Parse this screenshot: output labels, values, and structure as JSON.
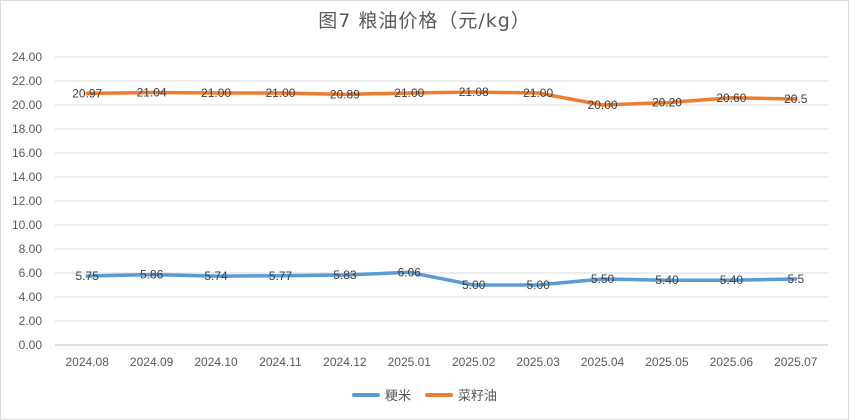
{
  "chart_data": {
    "type": "line",
    "title": "图7  粮油价格（元/kg）",
    "categories": [
      "2024.08",
      "2024.09",
      "2024.10",
      "2024.11",
      "2024.12",
      "2025.01",
      "2025.02",
      "2025.03",
      "2025.04",
      "2025.05",
      "2025.06",
      "2025.07"
    ],
    "series": [
      {
        "name": "粳米",
        "color": "#5b9bd5",
        "values": [
          5.75,
          5.86,
          5.74,
          5.77,
          5.83,
          6.06,
          5.0,
          5.0,
          5.5,
          5.4,
          5.4,
          5.5
        ],
        "labels": [
          "5.75",
          "5.86",
          "5.74",
          "5.77",
          "5.83",
          "6.06",
          "5.00",
          "5.00",
          "5.50",
          "5.40",
          "5.40",
          "5.5"
        ]
      },
      {
        "name": "菜籽油",
        "color": "#ed7d31",
        "values": [
          20.97,
          21.04,
          21.0,
          21.0,
          20.89,
          21.0,
          21.08,
          21.0,
          20.0,
          20.2,
          20.6,
          20.5
        ],
        "labels": [
          "20.97",
          "21.04",
          "21.00",
          "21.00",
          "20.89",
          "21.00",
          "21.08",
          "21.00",
          "20.00",
          "20.20",
          "20.60",
          "20.5"
        ]
      }
    ],
    "ylim": [
      0,
      24
    ],
    "yticks": [
      "0.00",
      "2.00",
      "4.00",
      "6.00",
      "8.00",
      "10.00",
      "12.00",
      "14.00",
      "16.00",
      "18.00",
      "20.00",
      "22.00",
      "24.00"
    ],
    "grid": true,
    "legend": "bottom"
  }
}
